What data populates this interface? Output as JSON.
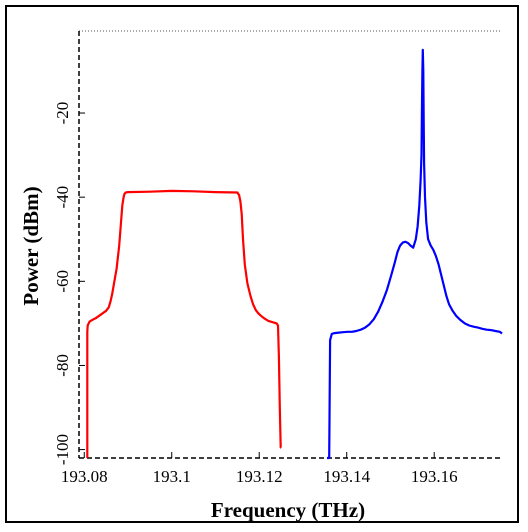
{
  "chart_data": {
    "type": "line",
    "xlabel": "Frequency (THz)",
    "ylabel": "Power (dBm)",
    "xlim": [
      193.0788,
      193.1755
    ],
    "ylim": [
      -102,
      -0.5
    ],
    "x_ticks": [
      "193.08",
      "193.1",
      "193.12",
      "193.14",
      "193.16"
    ],
    "x_tick_values": [
      193.08,
      193.1,
      193.12,
      193.14,
      193.16
    ],
    "y_ticks": [
      "-20",
      "-40",
      "-60",
      "-80",
      "-100"
    ],
    "y_tick_values": [
      -20,
      -40,
      -60,
      -80,
      -100
    ],
    "grid": false,
    "series": [
      {
        "color": "#ff0000",
        "x": [
          193.0807,
          193.0807,
          193.0808,
          193.0812,
          193.0818,
          193.0826,
          193.0834,
          193.0842,
          193.085,
          193.0856,
          193.086,
          193.0864,
          193.0868,
          193.0874,
          193.088,
          193.0884,
          193.0887,
          193.089,
          193.0892,
          193.0895,
          193.09,
          193.095,
          193.1,
          193.105,
          193.11,
          193.115,
          193.1154,
          193.1157,
          193.116,
          193.1163,
          193.1167,
          193.1173,
          193.118,
          193.1186,
          193.1192,
          193.1198,
          193.1204,
          193.121,
          193.1216,
          193.1221,
          193.124,
          193.1243,
          193.1245,
          193.1247,
          193.1249,
          193.125
        ],
        "y": [
          -102,
          -72,
          -70.5,
          -69.6,
          -69.2,
          -68.8,
          -68.2,
          -67.6,
          -67.0,
          -66.2,
          -64.8,
          -63.0,
          -60.5,
          -57.0,
          -51.5,
          -46.0,
          -42.0,
          -40.0,
          -39.2,
          -38.9,
          -38.8,
          -38.7,
          -38.5,
          -38.6,
          -38.8,
          -38.9,
          -39.5,
          -41.0,
          -44.0,
          -50.0,
          -56.0,
          -60.5,
          -63.5,
          -65.5,
          -66.8,
          -67.6,
          -68.2,
          -68.7,
          -69.1,
          -69.4,
          -70.0,
          -70.5,
          -78.0,
          -90.0,
          -99.5,
          -99.5
        ]
      },
      {
        "color": "#0000ff",
        "x": [
          193.1355,
          193.136,
          193.1362,
          193.1366,
          193.1372,
          193.1382,
          193.1392,
          193.1402,
          193.1412,
          193.1422,
          193.1432,
          193.1442,
          193.1452,
          193.1462,
          193.1472,
          193.1482,
          193.1492,
          193.1502,
          193.151,
          193.1516,
          193.1522,
          193.1528,
          193.1534,
          193.154,
          193.1546,
          193.1552,
          193.1558,
          193.1562,
          193.1566,
          193.1569,
          193.1571,
          193.1572,
          193.1573,
          193.1574,
          193.1575,
          193.1576,
          193.1577,
          193.1579,
          193.1582,
          193.1586,
          193.1592,
          193.1598,
          193.1604,
          193.161,
          193.1616,
          193.1622,
          193.1628,
          193.1634,
          193.1642,
          193.165,
          193.166,
          193.167,
          193.168,
          193.169,
          193.17,
          193.171,
          193.172,
          193.173,
          193.174,
          193.175,
          193.1755
        ],
        "y": [
          -102,
          -102,
          -74.0,
          -72.5,
          -72.3,
          -72.2,
          -72.1,
          -72.0,
          -72.0,
          -71.8,
          -71.5,
          -71.0,
          -70.2,
          -69.0,
          -67.2,
          -64.8,
          -62.0,
          -58.5,
          -55.5,
          -53.0,
          -51.5,
          -50.8,
          -50.6,
          -50.9,
          -51.5,
          -52.0,
          -50.0,
          -47.0,
          -42.0,
          -36.0,
          -30.0,
          -20.0,
          -10.0,
          -5.0,
          -10.0,
          -22.0,
          -32.0,
          -40.0,
          -46.0,
          -50.0,
          -51.5,
          -52.5,
          -54.0,
          -56.0,
          -58.5,
          -61.0,
          -63.5,
          -65.5,
          -67.0,
          -68.2,
          -69.2,
          -70.0,
          -70.5,
          -70.8,
          -71.0,
          -71.3,
          -71.5,
          -71.6,
          -71.8,
          -72.0,
          -72.4
        ]
      }
    ]
  }
}
